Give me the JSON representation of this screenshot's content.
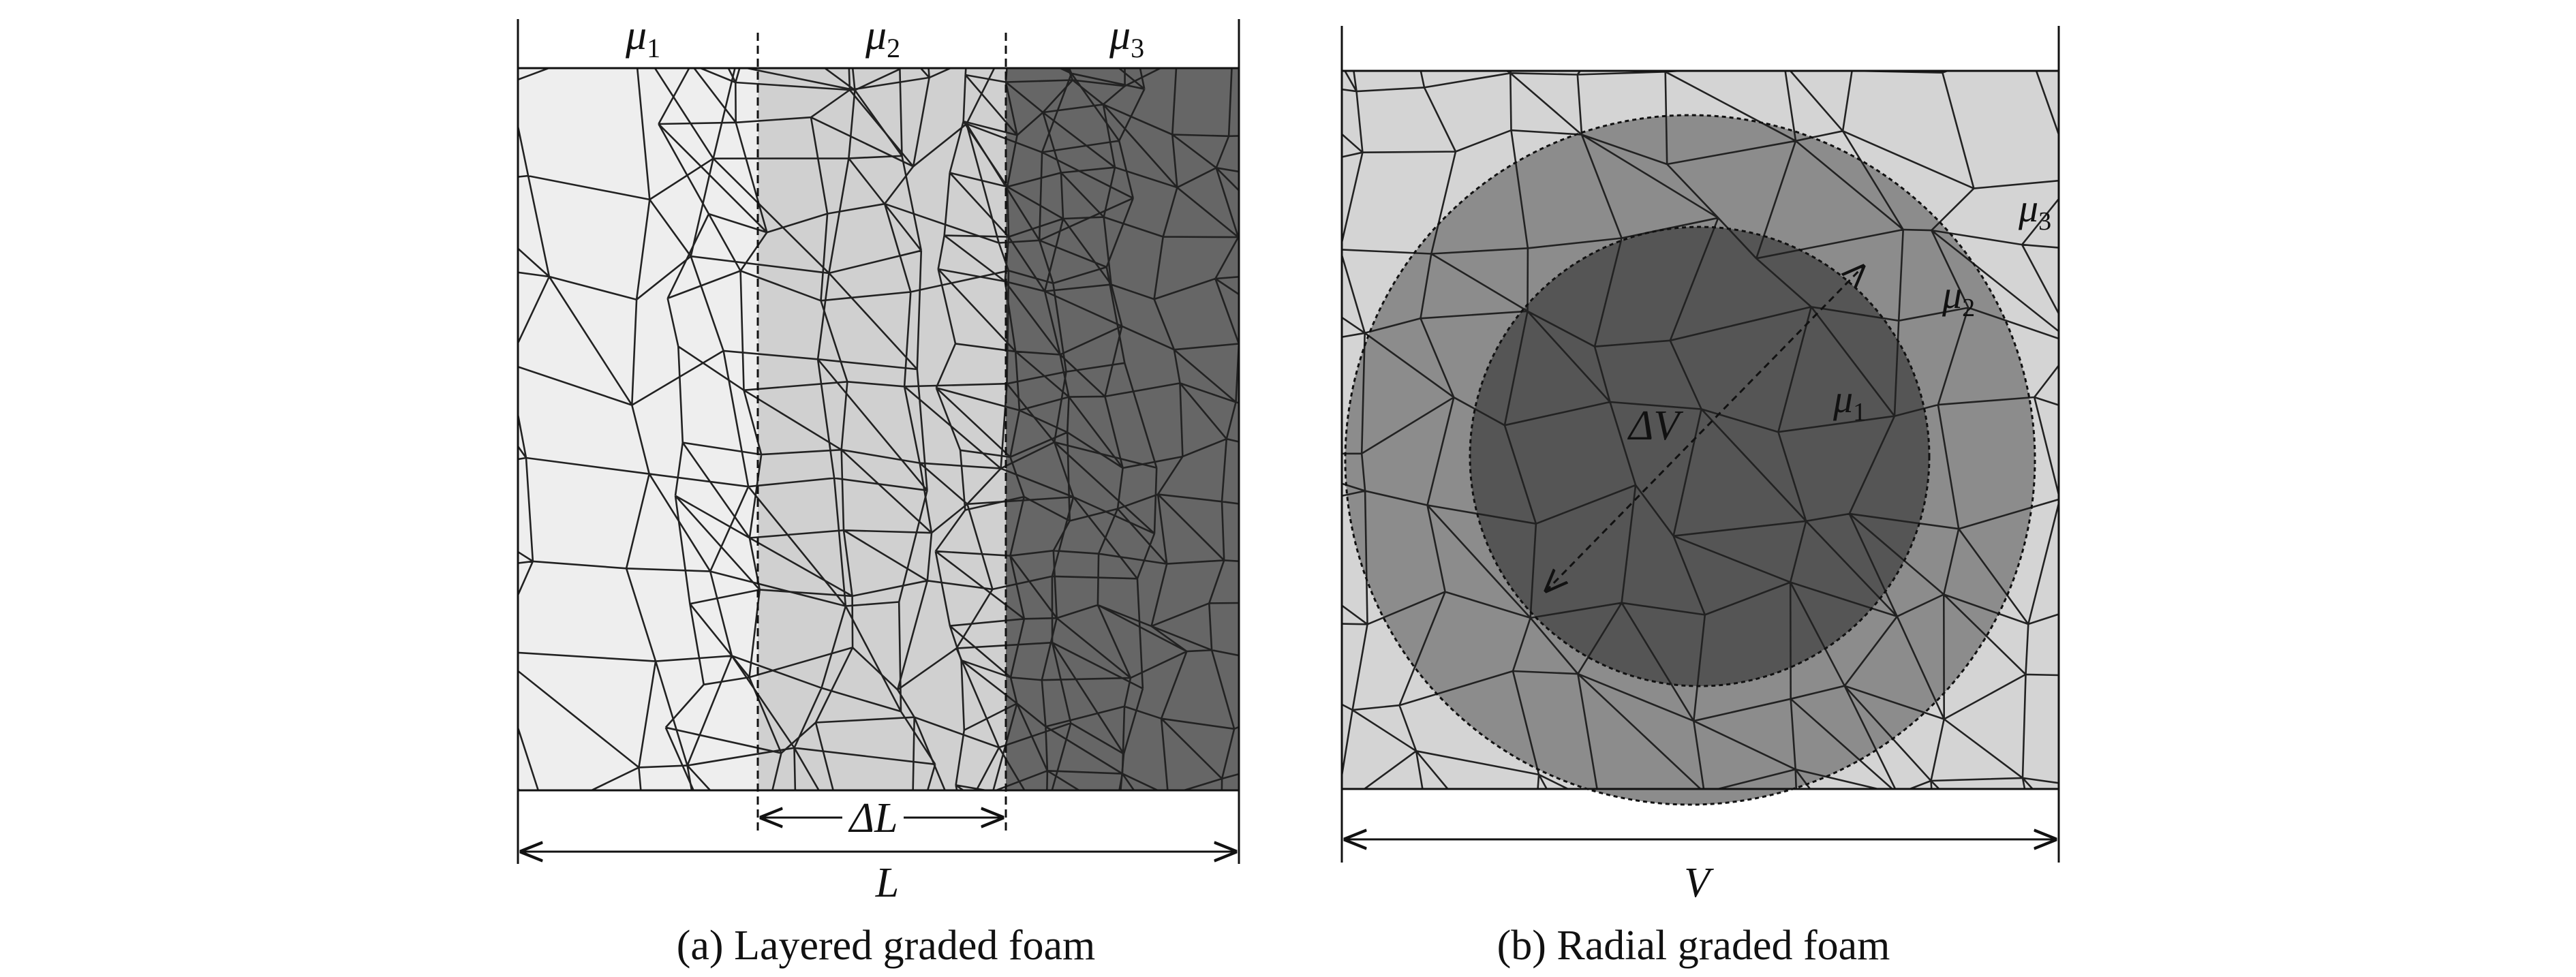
{
  "panel_a": {
    "caption": "(a) Layered graded foam",
    "layer_labels": [
      "μ",
      "μ",
      "μ"
    ],
    "layer_subscripts": [
      "1",
      "2",
      "3"
    ],
    "width_label": "L",
    "layer_width_label": "ΔL",
    "layer_fills": [
      "#eeeeee",
      "#d0d0d0",
      "#666666"
    ]
  },
  "panel_b": {
    "caption": "(b) Radial graded foam",
    "region_labels": [
      "μ",
      "μ",
      "μ"
    ],
    "region_subscripts": [
      "1",
      "2",
      "3"
    ],
    "width_label": "V",
    "ring_label": "ΔV",
    "region_fills": [
      "#555555",
      "#8c8c8c",
      "#d4d4d4"
    ]
  },
  "colors": {
    "cell_edge": "#222222",
    "line": "#111111"
  }
}
